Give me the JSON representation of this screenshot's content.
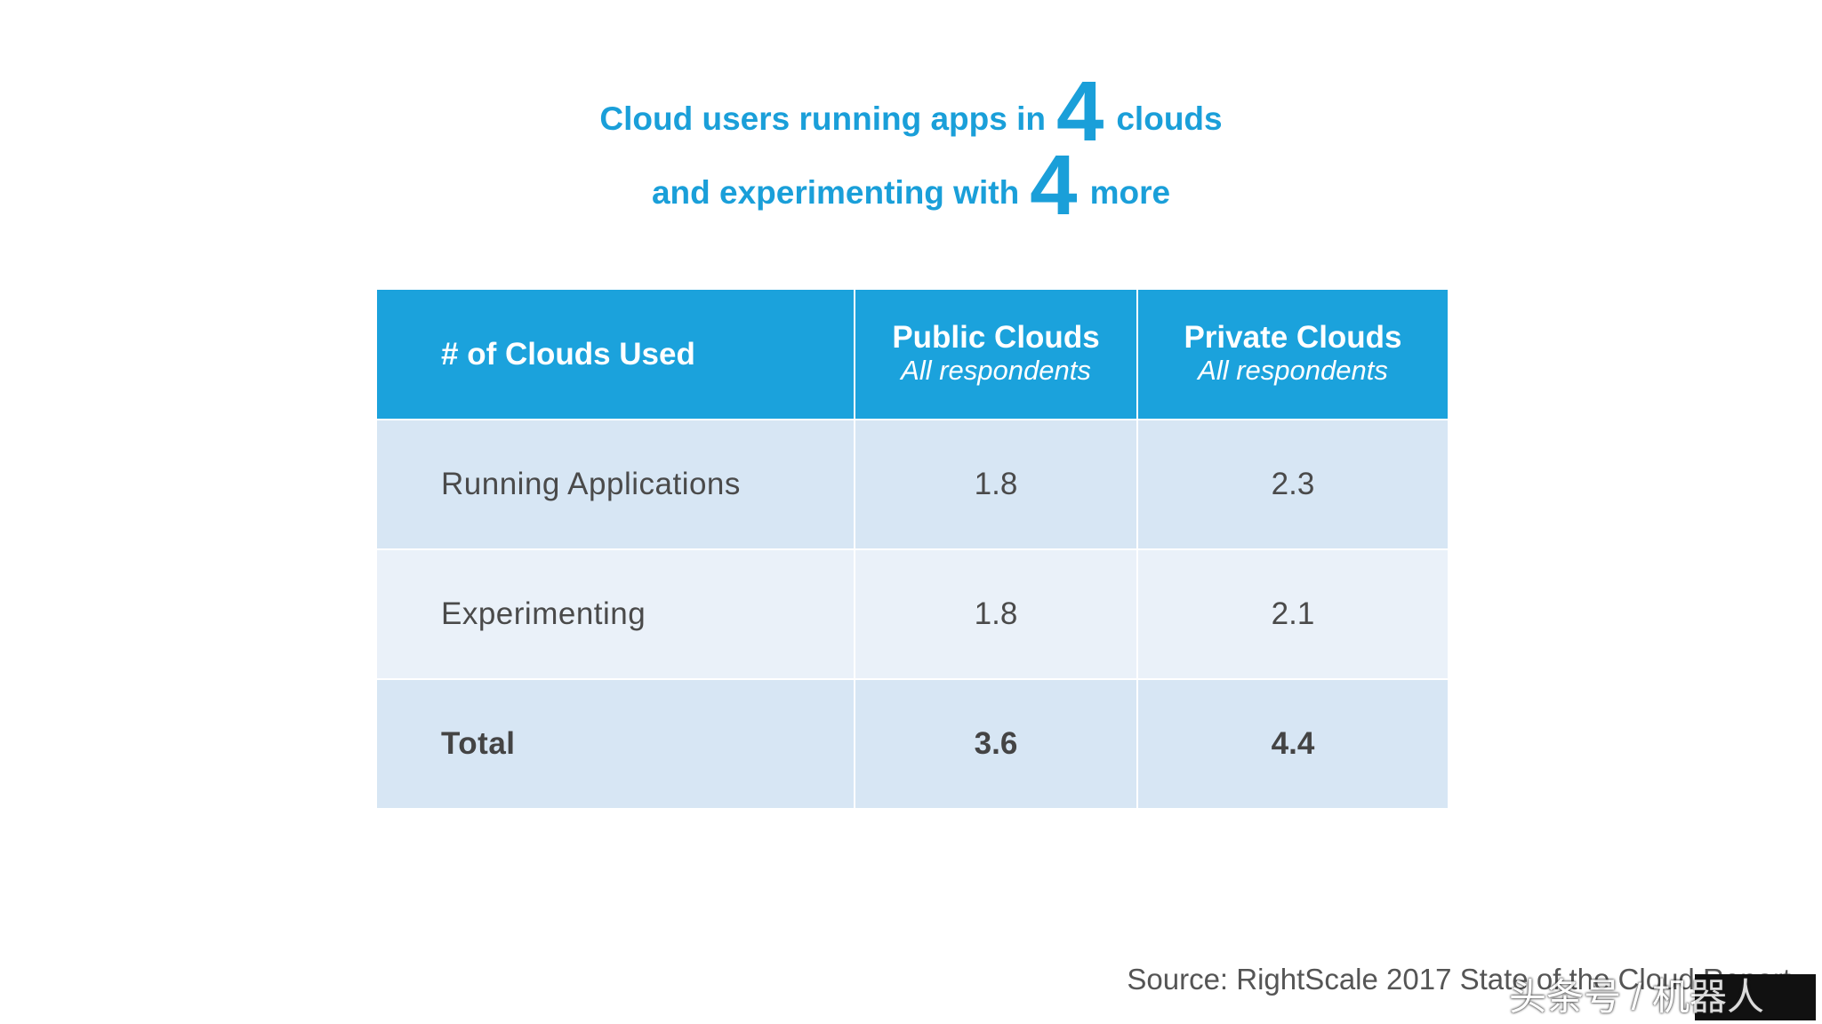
{
  "headline": {
    "line1_pre": "Cloud users running apps in",
    "line1_num": "4",
    "line1_post": "clouds",
    "line2_pre": "and experimenting with",
    "line2_num": "4",
    "line2_post": "more"
  },
  "chart_data": {
    "type": "table",
    "columns": [
      {
        "title": "# of Clouds Used",
        "subtitle": ""
      },
      {
        "title": "Public Clouds",
        "subtitle": "All respondents"
      },
      {
        "title": "Private Clouds",
        "subtitle": "All respondents"
      }
    ],
    "rows": [
      {
        "label": "Running Applications",
        "public": "1.8",
        "private": "2.3"
      },
      {
        "label": "Experimenting",
        "public": "1.8",
        "private": "2.1"
      },
      {
        "label": "Total",
        "public": "3.6",
        "private": "4.4"
      }
    ]
  },
  "source": "Source: RightScale 2017 State of the Cloud Report",
  "watermark": "头条号 / 机器人",
  "colors": {
    "accent": "#1a9fd9",
    "header_bg": "#1ba2dc",
    "row_dark": "#d7e6f4",
    "row_light": "#eaf1f9"
  }
}
